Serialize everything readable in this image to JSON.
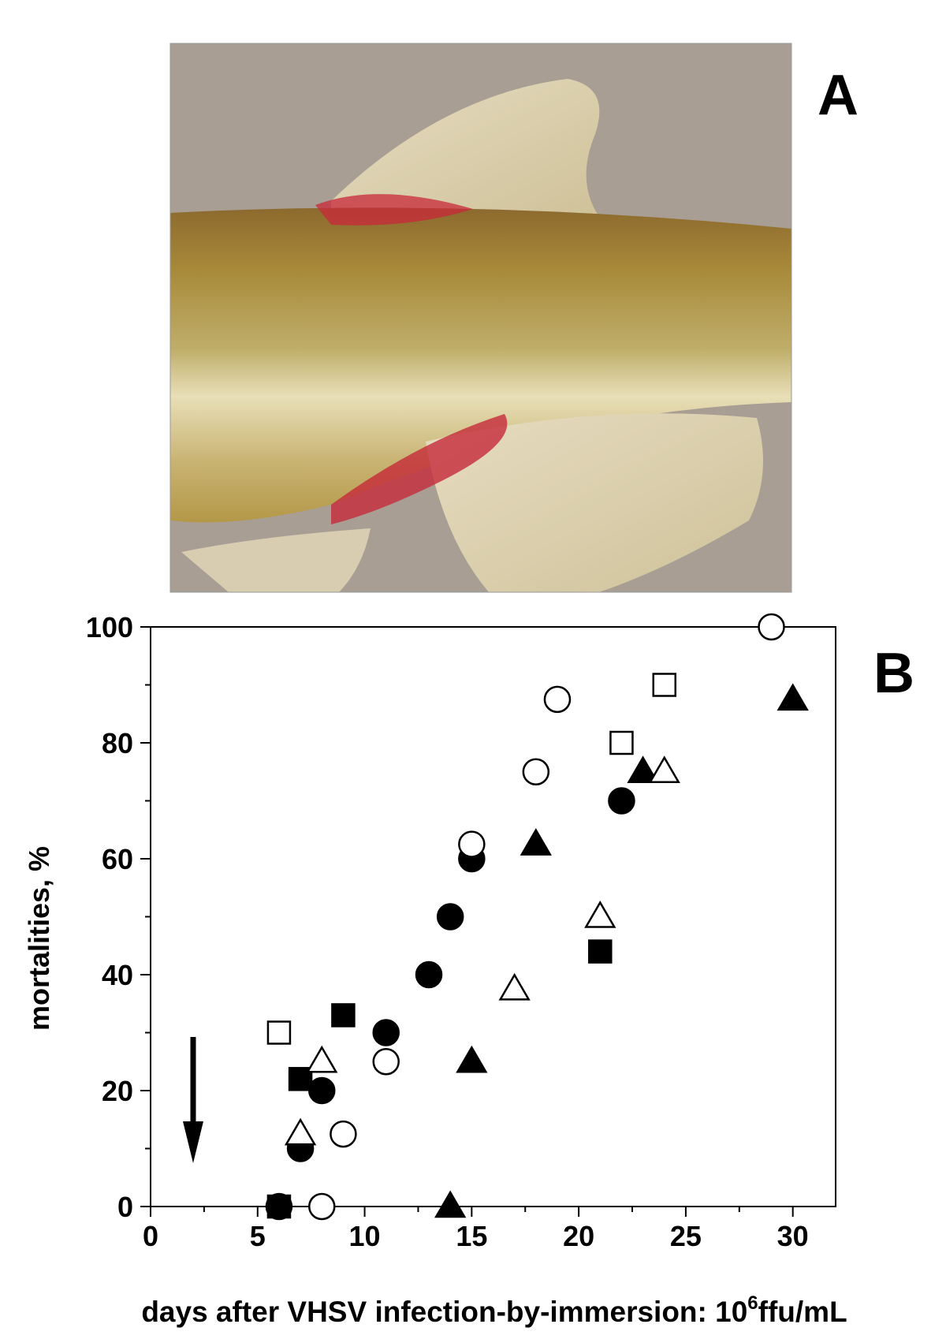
{
  "panel_a": {
    "label": "A"
  },
  "chart_data": {
    "type": "scatter",
    "panel_label": "B",
    "y_label": "mortalities, %",
    "x_label": [
      "days after VHSV infection-by-immersion: 10",
      "6",
      "ffu/mL"
    ],
    "xlim": [
      0,
      32
    ],
    "ylim": [
      0,
      100
    ],
    "xticks": [
      0,
      5,
      10,
      15,
      20,
      25,
      30
    ],
    "yticks": [
      0,
      20,
      40,
      60,
      80,
      100
    ],
    "xticks_minor": [
      2.5,
      7.5,
      12.5,
      17.5,
      22.5,
      27.5
    ],
    "yticks_minor": [
      10,
      30,
      50,
      70,
      90
    ],
    "series": [
      {
        "marker": "circle",
        "color": "#000000",
        "filled": true,
        "x": [
          6,
          7,
          8,
          11,
          13,
          14,
          15,
          22
        ],
        "values": [
          0,
          10,
          20,
          30,
          40,
          50,
          60,
          70
        ]
      },
      {
        "marker": "circle",
        "color": "#000000",
        "filled": false,
        "x": [
          8,
          9,
          11,
          15,
          18,
          19,
          29
        ],
        "values": [
          0,
          12.5,
          25,
          62.5,
          75,
          87.5,
          100
        ]
      },
      {
        "marker": "square",
        "color": "#000000",
        "filled": true,
        "x": [
          6,
          7,
          9,
          21
        ],
        "values": [
          0,
          22,
          33,
          44
        ]
      },
      {
        "marker": "square",
        "color": "#000000",
        "filled": false,
        "x": [
          6,
          22,
          24
        ],
        "values": [
          30,
          80,
          90
        ]
      },
      {
        "marker": "triangle",
        "color": "#000000",
        "filled": true,
        "x": [
          14,
          15,
          18,
          23,
          30
        ],
        "values": [
          0,
          25,
          62.5,
          75,
          87.5
        ]
      },
      {
        "marker": "triangle",
        "color": "#000000",
        "filled": false,
        "x": [
          7,
          8,
          17,
          21,
          24
        ],
        "values": [
          12.5,
          25,
          37.5,
          50,
          75
        ]
      }
    ]
  }
}
